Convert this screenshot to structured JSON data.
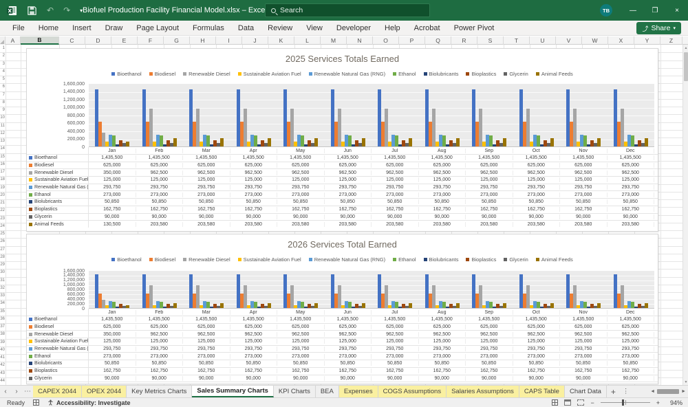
{
  "title_bar": {
    "title": "Biofuel Production Facility Financial Model.xlsx  –  Excel",
    "search_placeholder": "Search",
    "avatar_initials": "TB"
  },
  "icons": {
    "undo": "↶",
    "redo": "↷",
    "caret": "▾",
    "minimize": "—",
    "restore": "❐",
    "close": "×",
    "share_glyph": "⤴",
    "tab_prev": "‹",
    "tab_next": "›",
    "tab_more": "⋯",
    "add_sheet": "+",
    "tab_menu": "⋮",
    "hscroll_left": "◄",
    "hscroll_right": "►",
    "vscroll_up": "▲",
    "vscroll_down": "▼",
    "zoom_out": "−",
    "zoom_in": "+"
  },
  "ribbon": {
    "tabs": [
      "File",
      "Home",
      "Insert",
      "Draw",
      "Page Layout",
      "Formulas",
      "Data",
      "Review",
      "View",
      "Developer",
      "Help",
      "Acrobat",
      "Power Pivot"
    ],
    "share_label": "Share"
  },
  "grid": {
    "columns": [
      "A",
      "B",
      "C",
      "D",
      "E",
      "F",
      "G",
      "H",
      "I",
      "J",
      "K",
      "L",
      "M",
      "N",
      "O",
      "P",
      "Q",
      "R",
      "S",
      "T",
      "U",
      "V",
      "W",
      "X",
      "Y",
      "Z"
    ],
    "selected_column": "B",
    "row_count": 44
  },
  "chart_data": [
    {
      "type": "bar",
      "title": "2025 Services Totals Earned",
      "categories": [
        "Jan",
        "Feb",
        "Mar",
        "Apr",
        "May",
        "Jun",
        "Jul",
        "Aug",
        "Sep",
        "Oct",
        "Nov",
        "Dec"
      ],
      "y_ticks": [
        "1,600,000",
        "1,400,000",
        "1,200,000",
        "1,000,000",
        "800,000",
        "600,000",
        "400,000",
        "200,000",
        "0"
      ],
      "ylim": [
        0,
        1600000
      ],
      "legend_position": "top",
      "grid": true,
      "series": [
        {
          "name": "Bioethanol",
          "color": "#4472C4",
          "values": [
            1435500,
            1435500,
            1435500,
            1435500,
            1435500,
            1435500,
            1435500,
            1435500,
            1435500,
            1435500,
            1435500,
            1435500
          ]
        },
        {
          "name": "Biodiesel",
          "color": "#ED7D31",
          "values": [
            625000,
            625000,
            625000,
            625000,
            625000,
            625000,
            625000,
            625000,
            625000,
            625000,
            625000,
            625000
          ]
        },
        {
          "name": "Renewable Diesel",
          "color": "#A5A5A5",
          "values": [
            350000,
            962500,
            962500,
            962500,
            962500,
            962500,
            962500,
            962500,
            962500,
            962500,
            962500,
            962500
          ]
        },
        {
          "name": "Sustainable Aviation Fuel",
          "color": "#FFC000",
          "values": [
            125000,
            125000,
            125000,
            125000,
            125000,
            125000,
            125000,
            125000,
            125000,
            125000,
            125000,
            125000
          ]
        },
        {
          "name": "Renewable Natural Gas (RNG)",
          "color": "#5B9BD5",
          "values": [
            293750,
            293750,
            293750,
            293750,
            293750,
            293750,
            293750,
            293750,
            293750,
            293750,
            293750,
            293750
          ]
        },
        {
          "name": "Ethanol",
          "color": "#70AD47",
          "values": [
            273000,
            273000,
            273000,
            273000,
            273000,
            273000,
            273000,
            273000,
            273000,
            273000,
            273000,
            273000
          ]
        },
        {
          "name": "Biolubricants",
          "color": "#264478",
          "values": [
            50850,
            50850,
            50850,
            50850,
            50850,
            50850,
            50850,
            50850,
            50850,
            50850,
            50850,
            50850
          ]
        },
        {
          "name": "Bioplastics",
          "color": "#9E480E",
          "values": [
            162750,
            162750,
            162750,
            162750,
            162750,
            162750,
            162750,
            162750,
            162750,
            162750,
            162750,
            162750
          ]
        },
        {
          "name": "Glycerin",
          "color": "#636363",
          "values": [
            90000,
            90000,
            90000,
            90000,
            90000,
            90000,
            90000,
            90000,
            90000,
            90000,
            90000,
            90000
          ]
        },
        {
          "name": "Animal Feeds",
          "color": "#997300",
          "values": [
            130500,
            203580,
            203580,
            203580,
            203580,
            203580,
            203580,
            203580,
            203580,
            203580,
            203580,
            203580
          ]
        }
      ]
    },
    {
      "type": "bar",
      "title": "2026 Services Total Earned",
      "categories": [
        "Jan",
        "Feb",
        "Mar",
        "Apr",
        "May",
        "Jun",
        "Jul",
        "Aug",
        "Sep",
        "Oct",
        "Nov",
        "Dec"
      ],
      "y_ticks": [
        "1,600,000",
        "1,400,000",
        "1,200,000",
        "1,000,000",
        "800,000",
        "600,000",
        "400,000",
        "200,000",
        "0"
      ],
      "ylim": [
        0,
        1600000
      ],
      "legend_position": "top",
      "grid": true,
      "series": [
        {
          "name": "Bioethanol",
          "color": "#4472C4",
          "values": [
            1435500,
            1435500,
            1435500,
            1435500,
            1435500,
            1435500,
            1435500,
            1435500,
            1435500,
            1435500,
            1435500,
            1435500
          ]
        },
        {
          "name": "Biodiesel",
          "color": "#ED7D31",
          "values": [
            625000,
            625000,
            625000,
            625000,
            625000,
            625000,
            625000,
            625000,
            625000,
            625000,
            625000,
            625000
          ]
        },
        {
          "name": "Renewable Diesel",
          "color": "#A5A5A5",
          "values": [
            350000,
            962500,
            962500,
            962500,
            962500,
            962500,
            962500,
            962500,
            962500,
            962500,
            962500,
            962500
          ]
        },
        {
          "name": "Sustainable Aviation Fuel",
          "color": "#FFC000",
          "values": [
            125000,
            125000,
            125000,
            125000,
            125000,
            125000,
            125000,
            125000,
            125000,
            125000,
            125000,
            125000
          ]
        },
        {
          "name": "Renewable Natural Gas (RNG)",
          "color": "#5B9BD5",
          "values": [
            293750,
            293750,
            293750,
            293750,
            293750,
            293750,
            293750,
            293750,
            293750,
            293750,
            293750,
            293750
          ]
        },
        {
          "name": "Ethanol",
          "color": "#70AD47",
          "values": [
            273000,
            273000,
            273000,
            273000,
            273000,
            273000,
            273000,
            273000,
            273000,
            273000,
            273000,
            273000
          ]
        },
        {
          "name": "Biolubricants",
          "color": "#264478",
          "values": [
            50850,
            50850,
            50850,
            50850,
            50850,
            50850,
            50850,
            50850,
            50850,
            50850,
            50850,
            50850
          ]
        },
        {
          "name": "Bioplastics",
          "color": "#9E480E",
          "values": [
            162750,
            162750,
            162750,
            162750,
            162750,
            162750,
            162750,
            162750,
            162750,
            162750,
            162750,
            162750
          ]
        },
        {
          "name": "Glycerin",
          "color": "#636363",
          "values": [
            90000,
            90000,
            90000,
            90000,
            90000,
            90000,
            90000,
            90000,
            90000,
            90000,
            90000,
            90000
          ]
        },
        {
          "name": "Animal Feeds",
          "color": "#997300",
          "values": [
            130500,
            203580,
            203580,
            203580,
            203580,
            203580,
            203580,
            203580,
            203580,
            203580,
            203580,
            203580
          ]
        }
      ]
    }
  ],
  "sheet_tabs": [
    {
      "label": "CAPEX 2044",
      "highlight": true,
      "active": false
    },
    {
      "label": "OPEX 2044",
      "highlight": true,
      "active": false
    },
    {
      "label": "Key Metrics Charts",
      "highlight": false,
      "active": false
    },
    {
      "label": "Sales Summary Charts",
      "highlight": false,
      "active": true
    },
    {
      "label": "KPI Charts",
      "highlight": false,
      "active": false
    },
    {
      "label": "BEA",
      "highlight": false,
      "active": false
    },
    {
      "label": "Expenses",
      "highlight": true,
      "active": false
    },
    {
      "label": "COGS Assumptions",
      "highlight": true,
      "active": false
    },
    {
      "label": "Salaries Assumptions",
      "highlight": true,
      "active": false
    },
    {
      "label": "CAPS Table",
      "highlight": true,
      "active": false
    },
    {
      "label": "Chart Data",
      "highlight": false,
      "active": false
    }
  ],
  "status_bar": {
    "ready_label": "Ready",
    "accessibility_label": "Accessibility: Investigate",
    "zoom_level": "94%"
  }
}
